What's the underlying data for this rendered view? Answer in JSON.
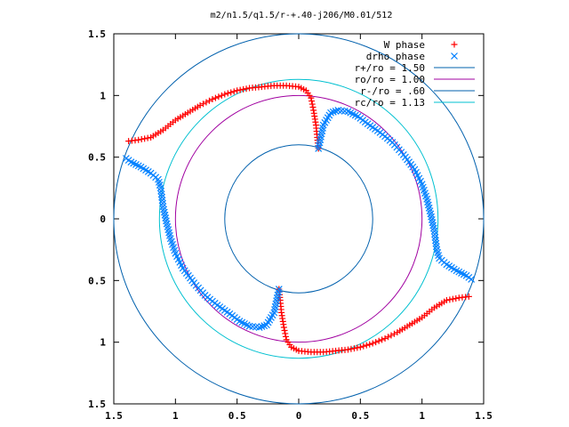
{
  "chart_data": {
    "type": "scatter",
    "title": "m2/n1.5/q1.5/r-+.40-j206/M0.01/512",
    "xlim": [
      -1.5,
      1.5
    ],
    "ylim": [
      -1.5,
      1.5
    ],
    "xticks": [
      "1.5",
      "1",
      "0.5",
      "0",
      "0.5",
      "1",
      "1.5"
    ],
    "yticks": [
      "1.5",
      "1",
      "0.5",
      "0",
      "0.5",
      "1",
      "1.5"
    ],
    "legend_position": "top-right",
    "circles": [
      {
        "name": "r+/ro = 1.50",
        "radius": 1.5,
        "color": "#0060ad"
      },
      {
        "name": "ro/ro = 1.00",
        "radius": 1.0,
        "color": "#a000a0"
      },
      {
        "name": "r-/ro = .60",
        "radius": 0.6,
        "color": "#0060ad"
      },
      {
        "name": "rc/ro = 1.13",
        "radius": 1.13,
        "color": "#00c0d0"
      }
    ],
    "series": [
      {
        "name": "W phase",
        "marker": "plus",
        "color": "#ff0000",
        "x": [
          -1.38,
          -1.3,
          -1.2,
          -1.1,
          -1.0,
          -0.9,
          -0.8,
          -0.7,
          -0.6,
          -0.5,
          -0.4,
          -0.3,
          -0.2,
          -0.1,
          0.0,
          0.06,
          0.1,
          0.12,
          0.14,
          0.15,
          0.16,
          1.38,
          1.3,
          1.2,
          1.1,
          1.0,
          0.9,
          0.8,
          0.7,
          0.6,
          0.5,
          0.4,
          0.3,
          0.2,
          0.1,
          0.0,
          -0.06,
          -0.1,
          -0.12,
          -0.14,
          -0.15,
          -0.16
        ],
        "y": [
          0.63,
          0.64,
          0.66,
          0.72,
          0.8,
          0.86,
          0.92,
          0.97,
          1.01,
          1.04,
          1.06,
          1.07,
          1.08,
          1.08,
          1.07,
          1.04,
          0.98,
          0.88,
          0.76,
          0.66,
          0.57,
          -0.63,
          -0.64,
          -0.66,
          -0.72,
          -0.8,
          -0.86,
          -0.92,
          -0.97,
          -1.01,
          -1.04,
          -1.06,
          -1.07,
          -1.08,
          -1.08,
          -1.07,
          -1.04,
          -0.98,
          -0.88,
          -0.76,
          -0.66,
          -0.57
        ]
      },
      {
        "name": "drho phase",
        "marker": "cross",
        "color": "#0080ff",
        "x": [
          0.16,
          0.2,
          0.26,
          0.32,
          0.4,
          0.48,
          0.56,
          0.66,
          0.76,
          0.85,
          0.94,
          1.0,
          1.04,
          1.07,
          1.1,
          1.12,
          1.14,
          1.2,
          1.28,
          1.36,
          1.4,
          -0.16,
          -0.2,
          -0.26,
          -0.32,
          -0.4,
          -0.48,
          -0.56,
          -0.66,
          -0.76,
          -0.85,
          -0.94,
          -1.0,
          -1.04,
          -1.07,
          -1.1,
          -1.12,
          -1.14,
          -1.2,
          -1.28,
          -1.36,
          -1.4
        ],
        "y": [
          0.57,
          0.76,
          0.86,
          0.88,
          0.87,
          0.83,
          0.77,
          0.7,
          0.62,
          0.52,
          0.4,
          0.28,
          0.16,
          0.04,
          -0.1,
          -0.25,
          -0.32,
          -0.37,
          -0.42,
          -0.46,
          -0.49,
          -0.57,
          -0.76,
          -0.86,
          -0.88,
          -0.87,
          -0.83,
          -0.77,
          -0.7,
          -0.62,
          -0.52,
          -0.4,
          -0.28,
          -0.16,
          -0.04,
          0.1,
          0.25,
          0.32,
          0.37,
          0.42,
          0.46,
          0.49
        ]
      }
    ]
  }
}
